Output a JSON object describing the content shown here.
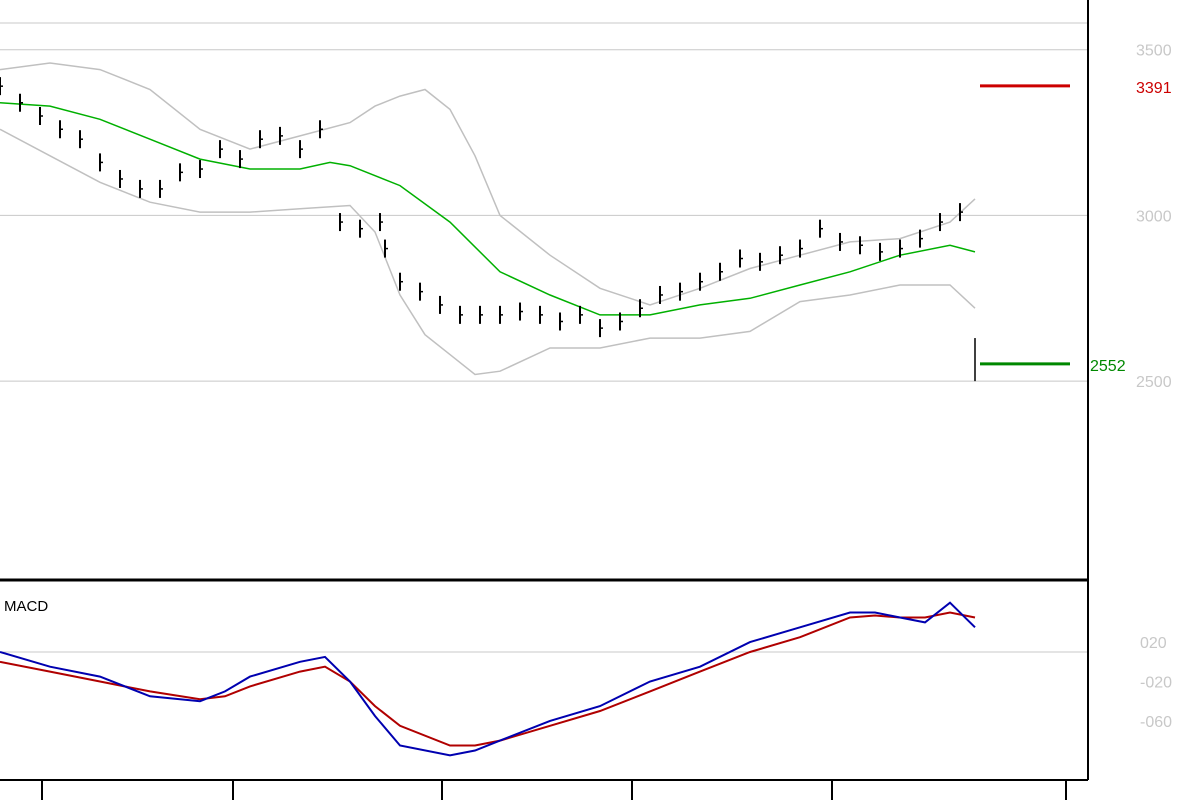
{
  "colors": {
    "background": "#ffffff",
    "gridline": "#c8c8c8",
    "frame": "#000000",
    "price_bar": "#000000",
    "bollinger_band": "#c0c0c0",
    "moving_average": "#00b000",
    "resistance": "#cc0000",
    "support": "#008800",
    "macd_line": "#0000b0",
    "signal_line": "#b00000",
    "axis_text": "#c8c8c8"
  },
  "chart_data": [
    {
      "type": "line",
      "title": "",
      "ylim": [
        1900,
        3650
      ],
      "y_ticks": [
        {
          "value": 3500,
          "label": "3500"
        },
        {
          "value": 3000,
          "label": "3000"
        },
        {
          "value": 2500,
          "label": "2500"
        }
      ],
      "reference_lines": [
        {
          "name": "resistance",
          "value": 3391,
          "label": "3391",
          "x_from": 196,
          "x_to": 214,
          "color": "#cc0000"
        },
        {
          "name": "support",
          "value": 2552,
          "label": "2552",
          "x_from": 196,
          "x_to": 214,
          "color": "#008800"
        }
      ],
      "last_bar": {
        "x": 195,
        "high": 2630,
        "low": 2500,
        "close": 2620
      },
      "series": [
        {
          "role": "price_bars",
          "x": [
            0,
            4,
            8,
            12,
            16,
            20,
            24,
            28,
            32,
            36,
            40,
            44,
            48,
            52,
            56,
            60,
            64,
            68,
            72,
            76,
            77,
            80,
            84,
            88,
            92,
            96,
            100,
            104,
            108,
            112,
            116,
            120,
            124,
            128,
            132,
            136,
            140,
            144,
            148,
            152,
            156,
            160,
            164,
            168,
            172,
            176,
            180,
            184,
            188,
            192
          ],
          "y": [
            3390,
            3340,
            3300,
            3260,
            3230,
            3160,
            3110,
            3080,
            3080,
            3130,
            3140,
            3200,
            3170,
            3230,
            3240,
            3200,
            3260,
            2980,
            2960,
            2980,
            2900,
            2800,
            2770,
            2730,
            2700,
            2700,
            2700,
            2710,
            2700,
            2680,
            2700,
            2660,
            2680,
            2720,
            2760,
            2770,
            2800,
            2830,
            2870,
            2860,
            2880,
            2900,
            2960,
            2920,
            2910,
            2890,
            2900,
            2930,
            2980,
            3010
          ]
        },
        {
          "role": "moving_average",
          "x": [
            0,
            10,
            20,
            30,
            40,
            50,
            60,
            66,
            70,
            80,
            90,
            100,
            110,
            120,
            130,
            140,
            150,
            160,
            170,
            180,
            190,
            195
          ],
          "y": [
            3340,
            3330,
            3290,
            3230,
            3170,
            3140,
            3140,
            3160,
            3150,
            3090,
            2980,
            2830,
            2760,
            2700,
            2700,
            2730,
            2750,
            2790,
            2830,
            2880,
            2910,
            2890
          ]
        },
        {
          "role": "bollinger_upper",
          "x": [
            0,
            10,
            20,
            30,
            40,
            50,
            60,
            70,
            75,
            80,
            85,
            90,
            95,
            100,
            110,
            120,
            130,
            140,
            150,
            160,
            170,
            180,
            190,
            195
          ],
          "y": [
            3440,
            3460,
            3440,
            3380,
            3260,
            3200,
            3240,
            3280,
            3330,
            3360,
            3380,
            3320,
            3180,
            3000,
            2880,
            2780,
            2730,
            2780,
            2840,
            2880,
            2920,
            2930,
            2980,
            3050
          ]
        },
        {
          "role": "bollinger_lower",
          "x": [
            0,
            10,
            20,
            30,
            40,
            50,
            60,
            70,
            75,
            80,
            85,
            90,
            95,
            100,
            110,
            120,
            130,
            140,
            150,
            160,
            170,
            180,
            190,
            195
          ],
          "y": [
            3260,
            3180,
            3100,
            3040,
            3010,
            3010,
            3020,
            3030,
            2950,
            2760,
            2640,
            2580,
            2520,
            2530,
            2600,
            2600,
            2630,
            2630,
            2650,
            2740,
            2760,
            2790,
            2790,
            2720
          ]
        }
      ]
    },
    {
      "type": "line",
      "title": "MACD",
      "ylim": [
        -120,
        80
      ],
      "y_ticks": [
        {
          "value": 20,
          "label": "020"
        },
        {
          "value": -20,
          "label": "-020"
        },
        {
          "value": -60,
          "label": "-060"
        }
      ],
      "series": [
        {
          "role": "macd_line",
          "x": [
            0,
            10,
            20,
            30,
            40,
            45,
            50,
            60,
            65,
            70,
            75,
            80,
            90,
            95,
            100,
            110,
            120,
            130,
            140,
            150,
            160,
            170,
            175,
            180,
            185,
            190,
            195
          ],
          "y": [
            10,
            -5,
            -15,
            -35,
            -40,
            -30,
            -15,
            0,
            5,
            -20,
            -55,
            -85,
            -95,
            -90,
            -80,
            -60,
            -45,
            -20,
            -5,
            20,
            35,
            50,
            50,
            45,
            40,
            60,
            35
          ]
        },
        {
          "role": "signal_line",
          "x": [
            0,
            10,
            20,
            30,
            40,
            45,
            50,
            60,
            65,
            70,
            75,
            80,
            90,
            95,
            100,
            110,
            120,
            130,
            140,
            150,
            160,
            170,
            175,
            180,
            185,
            190,
            195
          ],
          "y": [
            0,
            -10,
            -20,
            -30,
            -38,
            -35,
            -25,
            -10,
            -5,
            -20,
            -45,
            -65,
            -85,
            -85,
            -80,
            -65,
            -50,
            -30,
            -10,
            10,
            25,
            45,
            47,
            45,
            45,
            50,
            45
          ]
        }
      ]
    }
  ]
}
